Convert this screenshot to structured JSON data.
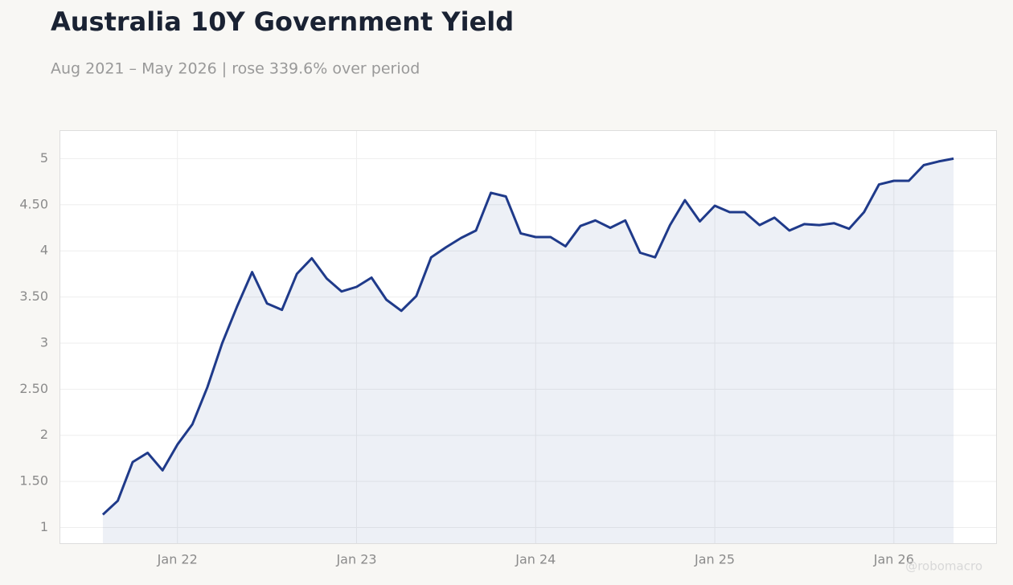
{
  "chart_data": {
    "type": "line",
    "title": "Australia 10Y Government Yield",
    "subtitle": "Aug 2021 – May 2026 | rose 339.6% over period",
    "watermark": "@robomacro",
    "x": [
      "2021-08",
      "2021-09",
      "2021-10",
      "2021-11",
      "2021-12",
      "2022-01",
      "2022-02",
      "2022-03",
      "2022-04",
      "2022-05",
      "2022-06",
      "2022-07",
      "2022-08",
      "2022-09",
      "2022-10",
      "2022-11",
      "2022-12",
      "2023-01",
      "2023-02",
      "2023-03",
      "2023-04",
      "2023-05",
      "2023-06",
      "2023-07",
      "2023-08",
      "2023-09",
      "2023-10",
      "2023-11",
      "2023-12",
      "2024-01",
      "2024-02",
      "2024-03",
      "2024-04",
      "2024-05",
      "2024-06",
      "2024-07",
      "2024-08",
      "2024-09",
      "2024-10",
      "2024-11",
      "2024-12",
      "2025-01",
      "2025-02",
      "2025-03",
      "2025-04",
      "2025-05",
      "2025-06",
      "2025-07",
      "2025-08",
      "2025-09",
      "2025-10",
      "2025-11",
      "2025-12",
      "2026-01",
      "2026-02",
      "2026-03",
      "2026-04",
      "2026-05"
    ],
    "series": [
      {
        "name": "Australia 10Y",
        "color": "#1f3a8a",
        "values": [
          1.14,
          1.29,
          1.71,
          1.81,
          1.62,
          1.9,
          2.12,
          2.52,
          3.0,
          3.4,
          3.77,
          3.43,
          3.36,
          3.75,
          3.92,
          3.7,
          3.56,
          3.61,
          3.71,
          3.47,
          3.35,
          3.51,
          3.93,
          4.04,
          4.14,
          4.22,
          4.63,
          4.59,
          4.19,
          4.15,
          4.15,
          4.05,
          4.27,
          4.33,
          4.25,
          4.33,
          3.98,
          3.93,
          4.28,
          4.55,
          4.32,
          4.49,
          4.42,
          4.42,
          4.28,
          4.36,
          4.22,
          4.29,
          4.28,
          4.3,
          4.24,
          4.42,
          4.72,
          4.76,
          4.76,
          4.93,
          4.97,
          5.0
        ]
      }
    ],
    "ylim": [
      0.83,
      5.3
    ],
    "yticks": [
      1,
      {
        "value": 1.5,
        "label": "1.50"
      },
      2,
      {
        "value": 2.5,
        "label": "2.50"
      },
      3,
      {
        "value": 3.5,
        "label": "3.50"
      },
      4,
      {
        "value": 4.5,
        "label": "4.50"
      },
      5
    ],
    "xticks": [
      {
        "value": "2022-01",
        "label": "Jan 22"
      },
      {
        "value": "2023-01",
        "label": "Jan 23"
      },
      {
        "value": "2024-01",
        "label": "Jan 24"
      },
      {
        "value": "2025-01",
        "label": "Jan 25"
      },
      {
        "value": "2026-01",
        "label": "Jan 26"
      }
    ],
    "grid": true,
    "area_fill": true
  }
}
